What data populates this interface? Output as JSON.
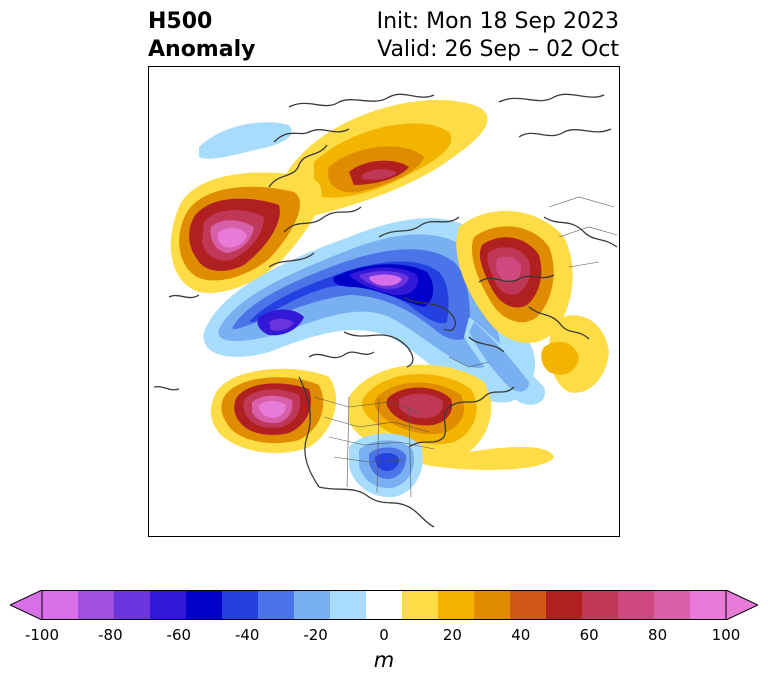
{
  "title": {
    "main_line1": "H500",
    "main_line2": "Anomaly",
    "init": "Init: Mon 18 Sep 2023",
    "valid": "Valid: 26 Sep – 02 Oct"
  },
  "colorbar": {
    "unit": "m",
    "ticks": [
      "-100",
      "-80",
      "-60",
      "-40",
      "-20",
      "0",
      "20",
      "40",
      "60",
      "80",
      "100"
    ],
    "range": [
      -100,
      100
    ],
    "extend": "both",
    "colors": [
      "#d66fe8",
      "#a04fe0",
      "#6a35df",
      "#3418d8",
      "#0000c8",
      "#2440e0",
      "#4a74e8",
      "#78b0f2",
      "#a8dcfc",
      "#ffffff",
      "#fddc45",
      "#f2b400",
      "#e08c00",
      "#d05818",
      "#b02020",
      "#c03858",
      "#d04880",
      "#d860a8",
      "#e87ad8"
    ]
  },
  "map": {
    "projection": "north-polar-stereographic",
    "features": [
      "coastlines",
      "country-borders",
      "us-state-borders"
    ],
    "anomaly_centers": [
      {
        "location": "north-pacific",
        "sign": "positive",
        "peak_m": 100
      },
      {
        "location": "northern-siberia",
        "sign": "positive",
        "peak_m": 70
      },
      {
        "location": "scandinavia-europe",
        "sign": "positive",
        "peak_m": 80
      },
      {
        "location": "western-north-america",
        "sign": "positive",
        "peak_m": 100
      },
      {
        "location": "eastern-canada",
        "sign": "positive",
        "peak_m": 70
      },
      {
        "location": "arctic-ocean",
        "sign": "negative",
        "peak_m": -100
      },
      {
        "location": "alaska-bering",
        "sign": "negative",
        "peak_m": -80
      },
      {
        "location": "central-us",
        "sign": "negative",
        "peak_m": -50
      }
    ]
  }
}
